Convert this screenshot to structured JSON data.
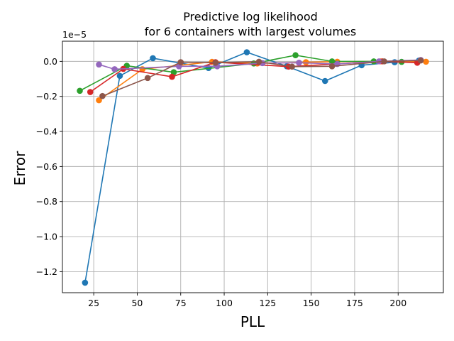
{
  "chart_data": {
    "type": "line",
    "title": [
      "Predictive log likelihood",
      "for 6 containers with largest volumes"
    ],
    "xlabel": "PLL",
    "ylabel": "Error",
    "y_offset_label": "1e−5",
    "y_scale_exponent": -5,
    "xlim": [
      7,
      226
    ],
    "ylim": [
      -1.32,
      0.115
    ],
    "xticks": [
      25,
      50,
      75,
      100,
      125,
      150,
      175,
      200
    ],
    "yticks": [
      -1.2,
      -1.0,
      -0.8,
      -0.6,
      -0.4,
      -0.2,
      0.0
    ],
    "ytick_labels": [
      "−1.2",
      "−1.0",
      "−0.8",
      "−0.6",
      "−0.4",
      "−0.2",
      "0.0"
    ],
    "grid": true,
    "marker": "circle",
    "series": [
      {
        "color": "#1f77b4",
        "x": [
          20,
          40,
          59,
          91,
          113,
          136,
          158,
          179,
          198,
          212
        ],
        "y": [
          -1.263,
          -0.083,
          0.018,
          -0.038,
          0.052,
          -0.028,
          -0.112,
          -0.022,
          -0.005,
          0.005
        ]
      },
      {
        "color": "#ff7f0e",
        "x": [
          28,
          53,
          93,
          119,
          147,
          165,
          190,
          216
        ],
        "y": [
          -0.222,
          -0.045,
          -0.003,
          -0.012,
          -0.005,
          -0.002,
          0.0,
          -0.002
        ]
      },
      {
        "color": "#2ca02c",
        "x": [
          17,
          44,
          71,
          117,
          141,
          162,
          186,
          202
        ],
        "y": [
          -0.168,
          -0.025,
          -0.062,
          -0.012,
          0.035,
          0.0,
          0.0,
          -0.003
        ]
      },
      {
        "color": "#d62728",
        "x": [
          23,
          42,
          70,
          95,
          137,
          191,
          211
        ],
        "y": [
          -0.175,
          -0.043,
          -0.088,
          -0.005,
          -0.03,
          0.0,
          -0.008
        ]
      },
      {
        "color": "#9467bd",
        "x": [
          28,
          37,
          74,
          96,
          122,
          143,
          165,
          189,
          213
        ],
        "y": [
          -0.018,
          -0.045,
          -0.028,
          -0.028,
          -0.01,
          -0.008,
          -0.015,
          0.0,
          0.008
        ]
      },
      {
        "color": "#8c564b",
        "x": [
          30,
          56,
          75,
          95,
          120,
          139,
          162,
          192,
          213
        ],
        "y": [
          -0.198,
          -0.095,
          -0.005,
          -0.008,
          -0.002,
          -0.03,
          -0.028,
          0.0,
          0.005
        ]
      }
    ]
  }
}
